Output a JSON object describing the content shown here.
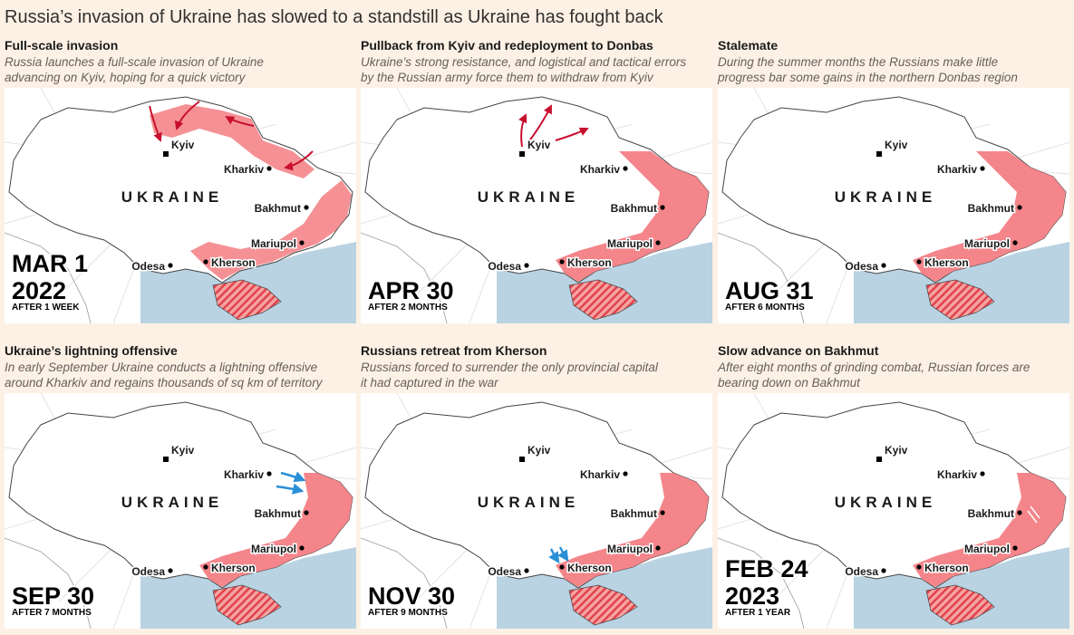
{
  "title": "Russia’s invasion of Ukraine has slowed to a standstill as Ukraine has fought back",
  "country_label": "UKRAINE",
  "cities": [
    "Kyiv",
    "Kharkiv",
    "Bakhmut",
    "Mariupol",
    "Kherson",
    "Odesa"
  ],
  "panels": [
    {
      "heading": "Full-scale invasion",
      "description": [
        "Russia launches a full-scale invasion of Ukraine",
        "advancing on Kyiv, hoping for a quick victory"
      ],
      "date": [
        "MAR 1",
        "2022"
      ],
      "note": "AFTER 1 WEEK"
    },
    {
      "heading": "Pullback from Kyiv and redeployment to Donbas",
      "description": [
        "Ukraine’s strong resistance, and logistical and tactical errors",
        "by the Russian army force them to withdraw from Kyiv"
      ],
      "date": [
        "APR 30"
      ],
      "note": "AFTER 2 MONTHS"
    },
    {
      "heading": "Stalemate",
      "description": [
        "During the summer months the Russians make little",
        "progress bar some gains in the northern Donbas region"
      ],
      "date": [
        "AUG 31"
      ],
      "note": "AFTER 6 MONTHS"
    },
    {
      "heading": "Ukraine’s lightning offensive",
      "description": [
        "In early September Ukraine conducts a lightning offensive",
        "around Kharkiv and regains thousands of sq km of territory"
      ],
      "date": [
        "SEP 30"
      ],
      "note": "AFTER 7 MONTHS"
    },
    {
      "heading": "Russians retreat from Kherson",
      "description": [
        "Russians forced to surrender the only provincial capital",
        "it had captured in the war"
      ],
      "date": [
        "NOV 30"
      ],
      "note": "AFTER 9 MONTHS"
    },
    {
      "heading": "Slow advance on Bakhmut",
      "description": [
        "After eight months of grinding combat, Russian forces are",
        "bearing down on Bakhmut"
      ],
      "date": [
        "FEB 24",
        "2023"
      ],
      "note": "AFTER 1 YEAR"
    }
  ]
}
